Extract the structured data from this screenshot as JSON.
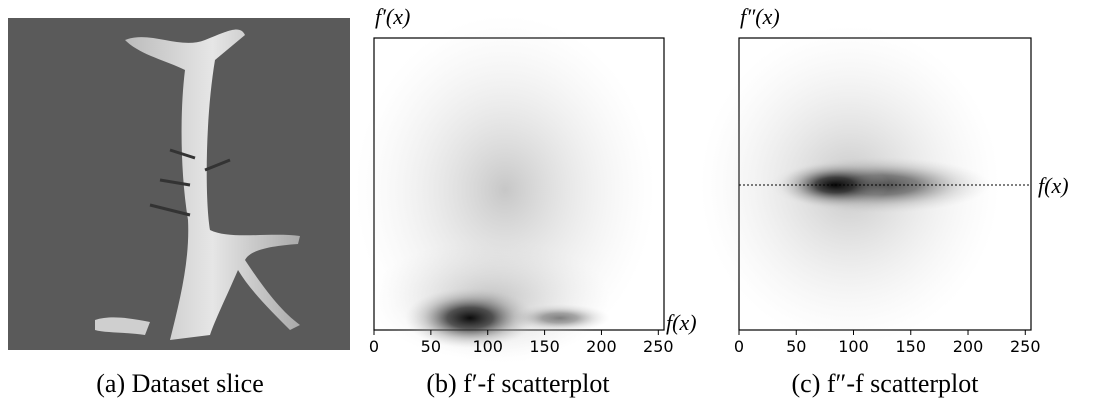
{
  "panels": [
    {
      "caption": "(a) Dataset slice"
    },
    {
      "caption": "(b) f′-f scatterplot",
      "y_label": "f′(x)",
      "x_label": "f(x)",
      "xlim": [
        0,
        255
      ],
      "xticks": [
        0,
        50,
        100,
        150,
        200,
        250
      ]
    },
    {
      "caption": "(c) f″-f scatterplot",
      "y_label": "f″(x)",
      "x_label": "f(x)",
      "xlim": [
        0,
        255
      ],
      "xticks": [
        0,
        50,
        100,
        150,
        200,
        250
      ]
    }
  ]
}
